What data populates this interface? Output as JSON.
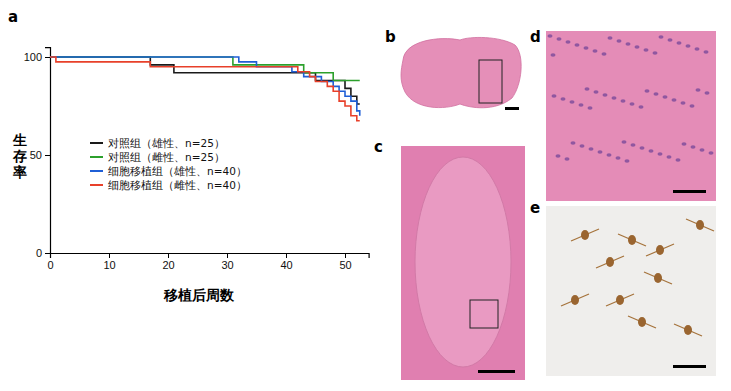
{
  "panel_labels": [
    "a",
    "b",
    "c",
    "d",
    "e"
  ],
  "chart_data": {
    "type": "line",
    "line_style": "step",
    "x_label": "移植后周数",
    "y_label": "生存率",
    "xlim": [
      0,
      54
    ],
    "xticks": [
      0,
      10,
      20,
      30,
      40,
      50
    ],
    "ylim": [
      0,
      105
    ],
    "yticks": [
      0,
      50,
      100
    ],
    "grid": false,
    "series": [
      {
        "name": "对照组（雄性、n=25）",
        "color": "#1a1a1a",
        "x": [
          0,
          17,
          21,
          45,
          50,
          51,
          52,
          52.5
        ],
        "values": [
          100,
          96,
          92,
          88,
          84,
          80,
          76,
          76
        ]
      },
      {
        "name": "对照组（雌性、n=25）",
        "color": "#2ca02c",
        "x": [
          0,
          31,
          43,
          48,
          52.5
        ],
        "values": [
          100,
          96,
          92,
          88,
          88
        ]
      },
      {
        "name": "细胞移植组（雄性、n=40）",
        "color": "#1f5fd6",
        "x": [
          0,
          32,
          35,
          41,
          43,
          46,
          48,
          49,
          50,
          51,
          52,
          52.5
        ],
        "values": [
          100,
          97.5,
          95,
          92.5,
          90,
          87.5,
          85,
          82.5,
          80,
          77.5,
          72.5,
          70
        ]
      },
      {
        "name": "细胞移植组（雌性、n=40）",
        "color": "#e8402a",
        "x": [
          0,
          1,
          17,
          42,
          44,
          45,
          47,
          48,
          49,
          50,
          51,
          52,
          52.5
        ],
        "values": [
          100,
          97.5,
          95,
          92.5,
          90,
          87.5,
          85,
          82.5,
          77.5,
          75,
          70,
          67.5,
          67.5
        ]
      }
    ]
  }
}
